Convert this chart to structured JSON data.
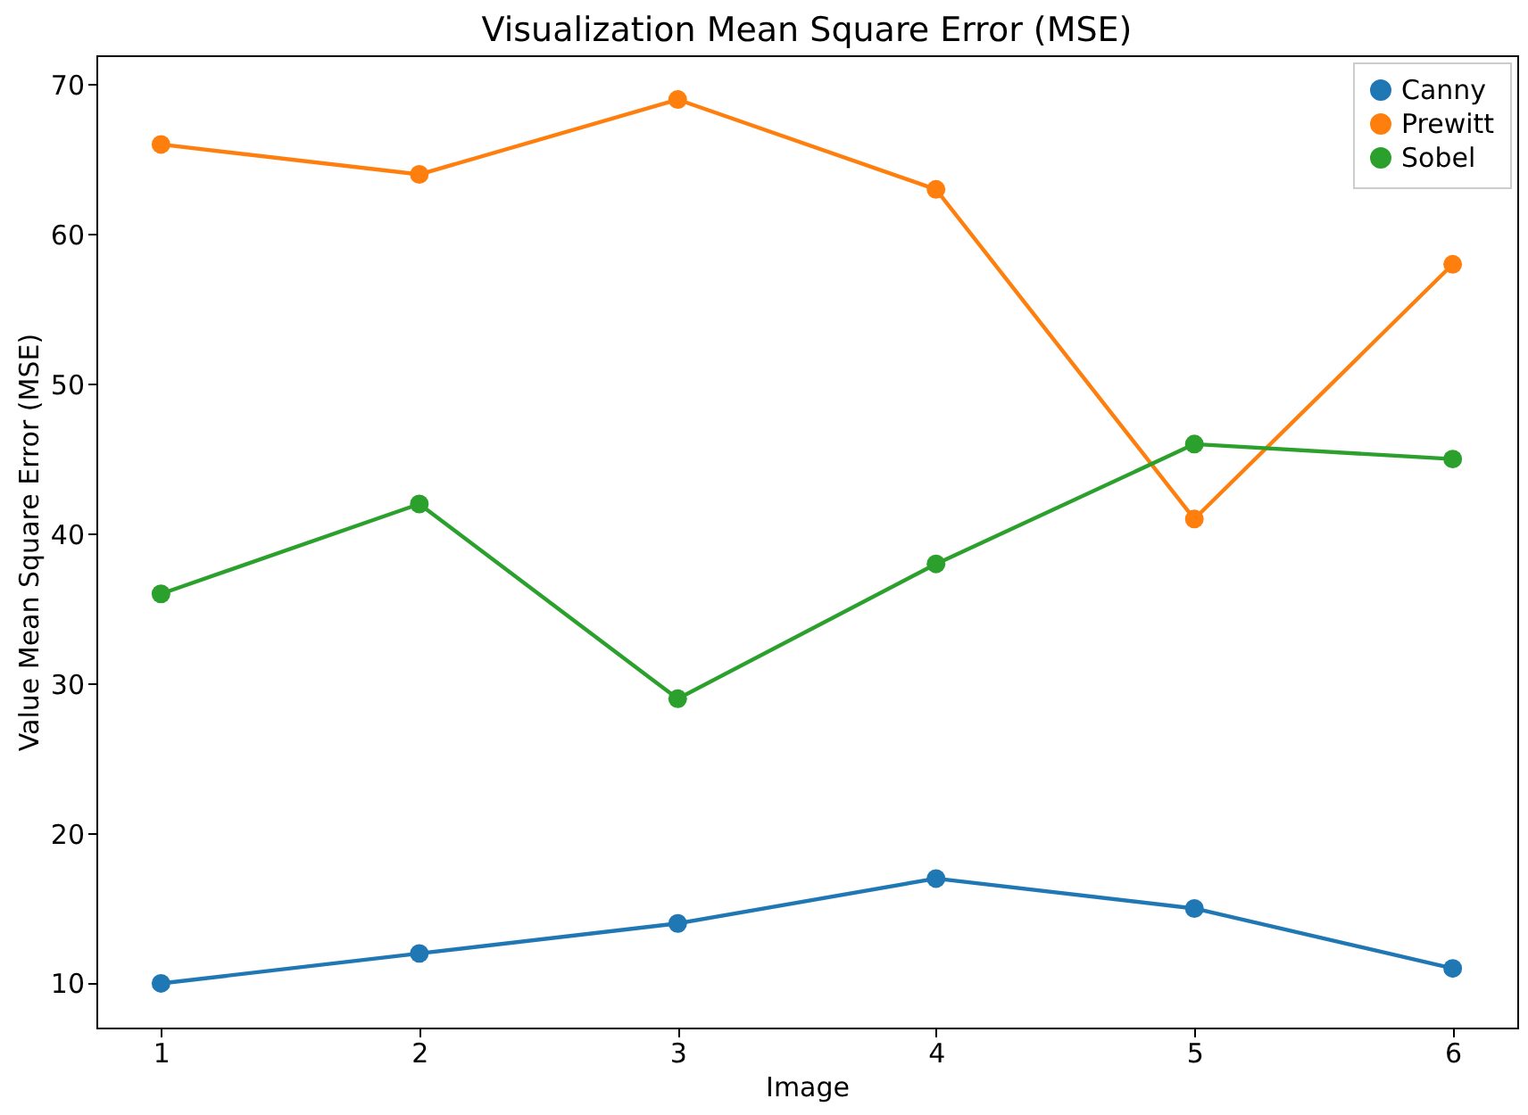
{
  "chart_data": {
    "type": "line",
    "title": "Visualization Mean Square Error (MSE)",
    "xlabel": "Image",
    "ylabel": "Value Mean Square Error (MSE)",
    "x": [
      1,
      2,
      3,
      4,
      5,
      6
    ],
    "series": [
      {
        "name": "Canny",
        "color": "#1f77b4",
        "values": [
          10,
          12,
          14,
          17,
          15,
          11
        ]
      },
      {
        "name": "Prewitt",
        "color": "#ff7f0e",
        "values": [
          66,
          64,
          69,
          63,
          41,
          58
        ]
      },
      {
        "name": "Sobel",
        "color": "#2ca02c",
        "values": [
          36,
          42,
          29,
          38,
          46,
          45
        ]
      }
    ],
    "xlim": [
      0.75,
      6.25
    ],
    "xticks": [
      1,
      2,
      3,
      4,
      5,
      6
    ],
    "ylim": [
      7.05,
      71.95
    ],
    "yticks": [
      10,
      20,
      30,
      40,
      50,
      60,
      70
    ],
    "legend": "top right",
    "marker": "circle",
    "line_style": "solid",
    "grid": false
  }
}
